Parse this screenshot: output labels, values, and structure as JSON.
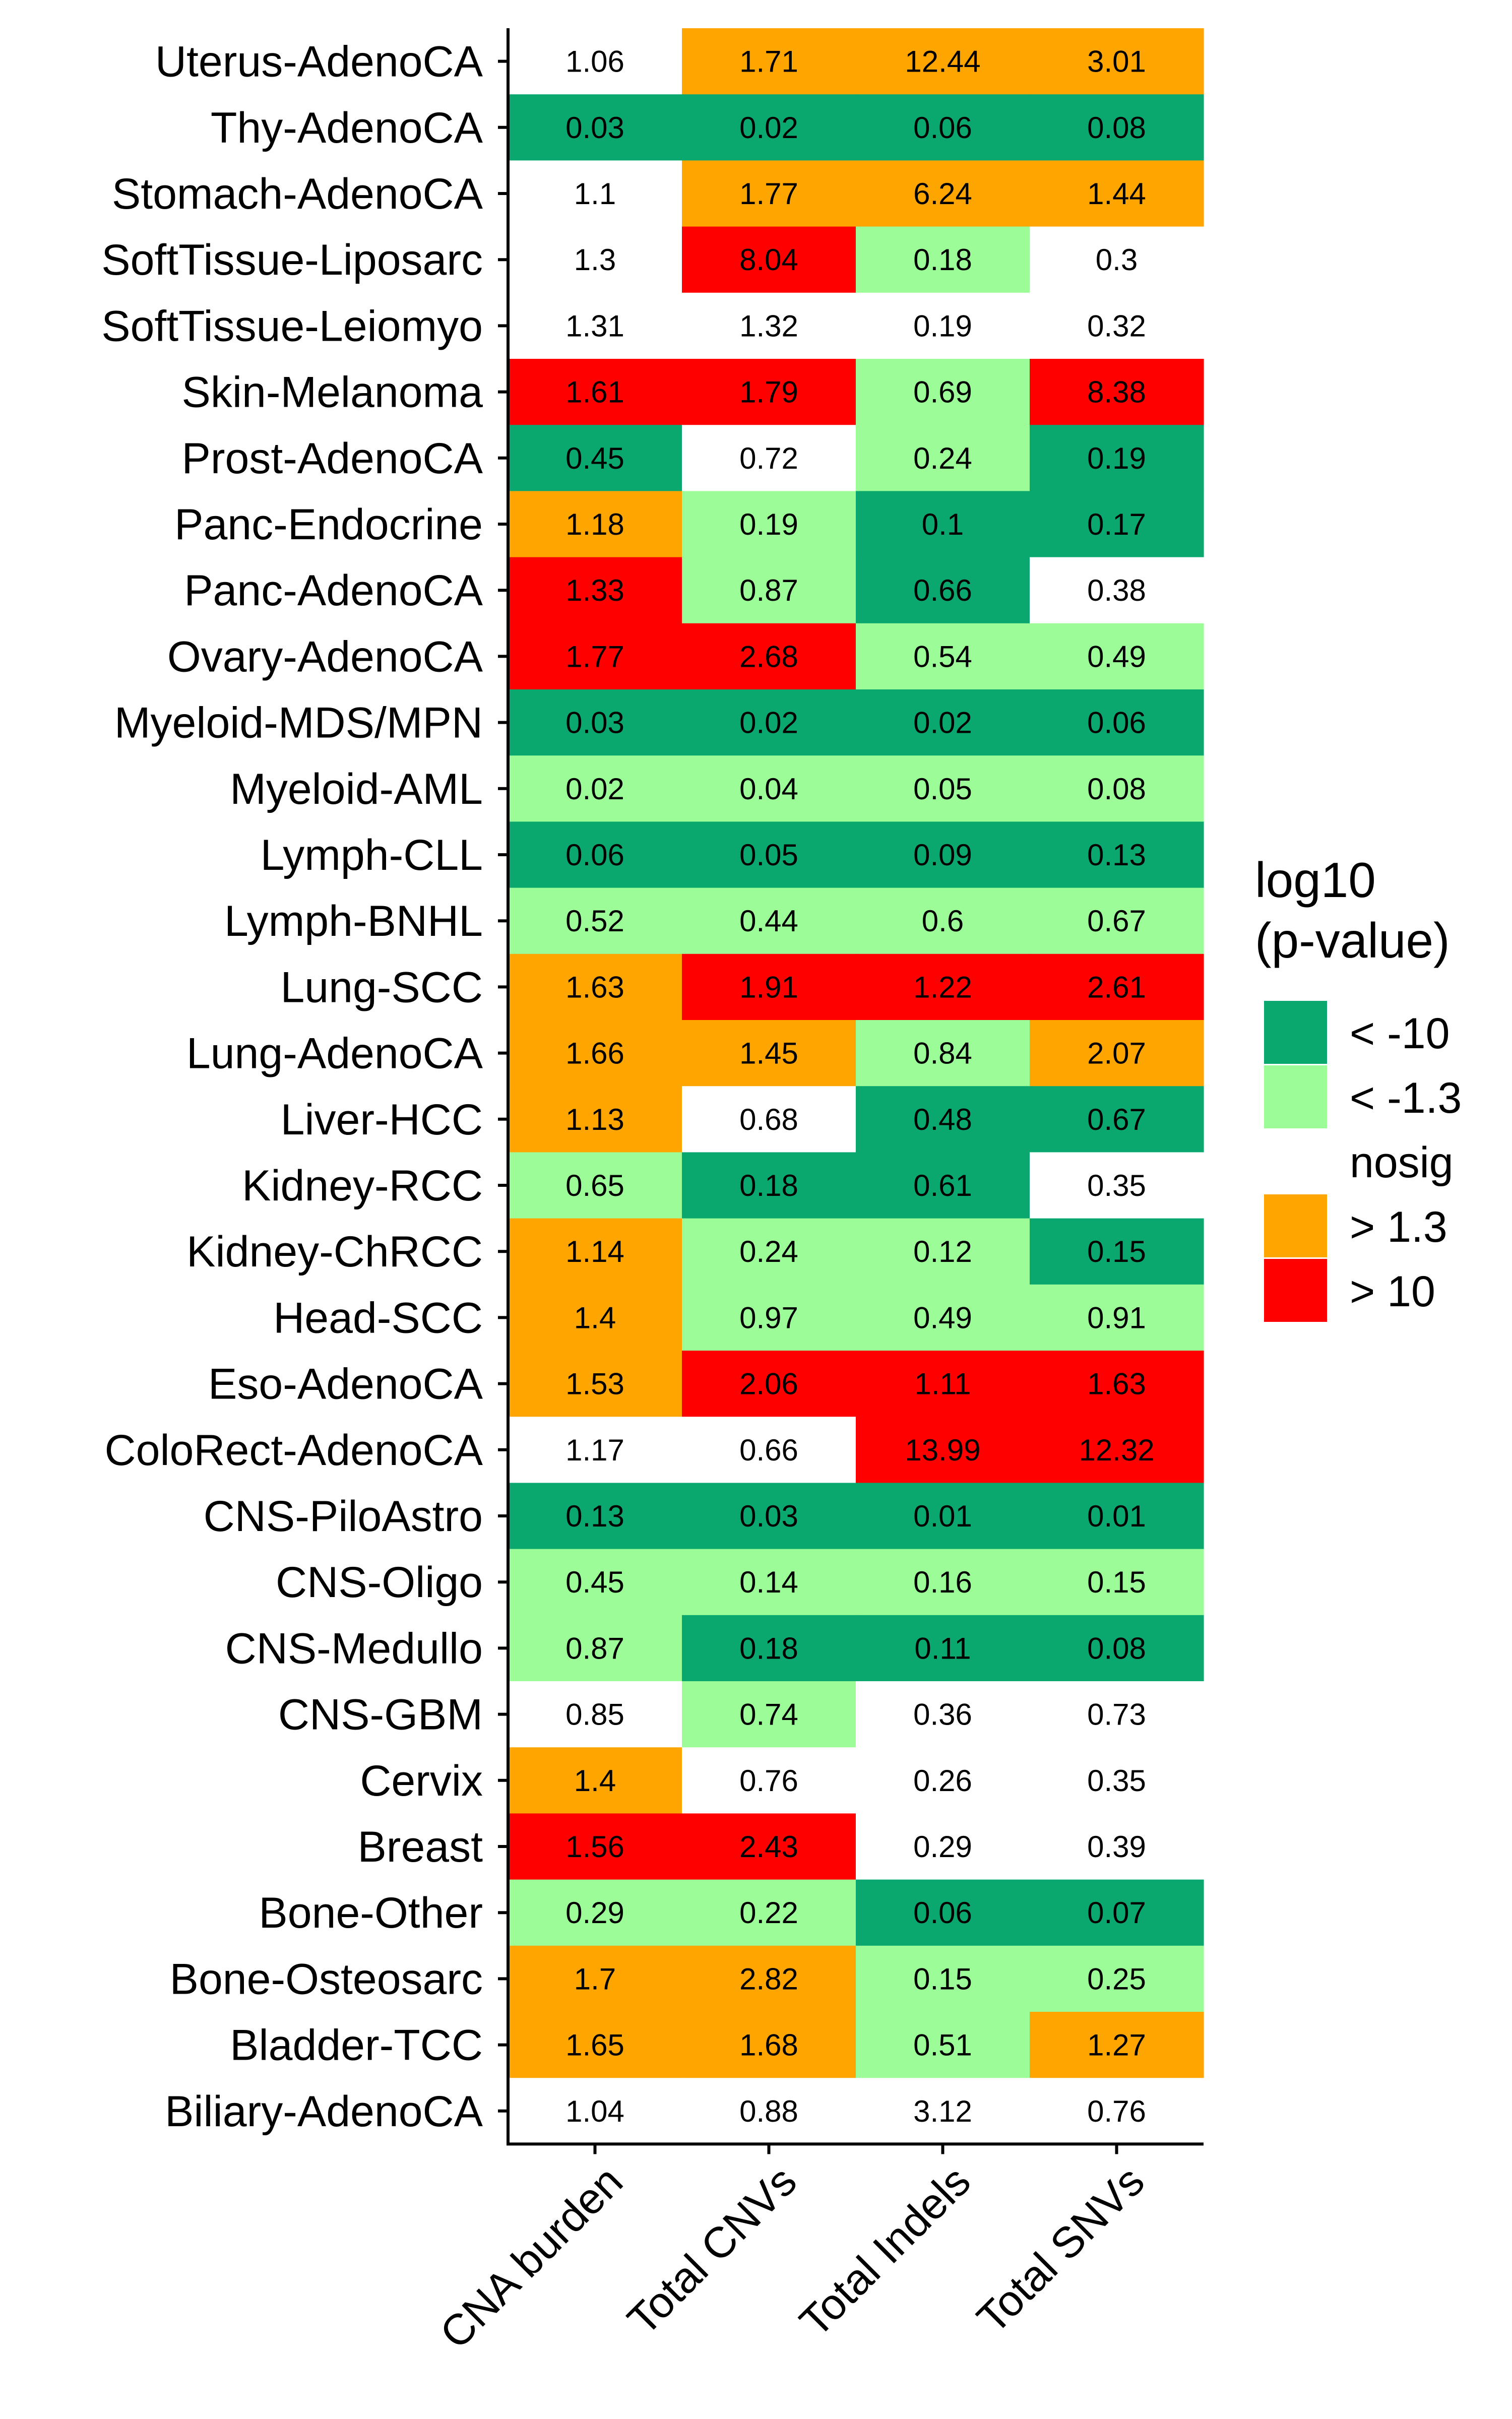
{
  "chart_data": {
    "type": "heatmap",
    "title": "",
    "xlabel": "",
    "ylabel": "",
    "columns": [
      "CNA burden",
      "Total CNVs",
      "Total Indels",
      "Total SNVs"
    ],
    "rows": [
      {
        "name": "Uterus-AdenoCA",
        "values": [
          "1.06",
          "1.71",
          "12.44",
          "3.01"
        ],
        "categories": [
          "nosig",
          "> 1.3",
          "> 1.3",
          "> 1.3"
        ]
      },
      {
        "name": "Thy-AdenoCA",
        "values": [
          "0.03",
          "0.02",
          "0.06",
          "0.08"
        ],
        "categories": [
          "< -10",
          "< -10",
          "< -10",
          "< -10"
        ]
      },
      {
        "name": "Stomach-AdenoCA",
        "values": [
          "1.1",
          "1.77",
          "6.24",
          "1.44"
        ],
        "categories": [
          "nosig",
          "> 1.3",
          "> 1.3",
          "> 1.3"
        ]
      },
      {
        "name": "SoftTissue-Liposarc",
        "values": [
          "1.3",
          "8.04",
          "0.18",
          "0.3"
        ],
        "categories": [
          "nosig",
          "> 10",
          "< -1.3",
          "nosig"
        ]
      },
      {
        "name": "SoftTissue-Leiomyo",
        "values": [
          "1.31",
          "1.32",
          "0.19",
          "0.32"
        ],
        "categories": [
          "nosig",
          "nosig",
          "nosig",
          "nosig"
        ]
      },
      {
        "name": "Skin-Melanoma",
        "values": [
          "1.61",
          "1.79",
          "0.69",
          "8.38"
        ],
        "categories": [
          "> 10",
          "> 10",
          "< -1.3",
          "> 10"
        ]
      },
      {
        "name": "Prost-AdenoCA",
        "values": [
          "0.45",
          "0.72",
          "0.24",
          "0.19"
        ],
        "categories": [
          "< -10",
          "nosig",
          "< -1.3",
          "< -10"
        ]
      },
      {
        "name": "Panc-Endocrine",
        "values": [
          "1.18",
          "0.19",
          "0.1",
          "0.17"
        ],
        "categories": [
          "> 1.3",
          "< -1.3",
          "< -10",
          "< -10"
        ]
      },
      {
        "name": "Panc-AdenoCA",
        "values": [
          "1.33",
          "0.87",
          "0.66",
          "0.38"
        ],
        "categories": [
          "> 10",
          "< -1.3",
          "< -10",
          "nosig"
        ]
      },
      {
        "name": "Ovary-AdenoCA",
        "values": [
          "1.77",
          "2.68",
          "0.54",
          "0.49"
        ],
        "categories": [
          "> 10",
          "> 10",
          "< -1.3",
          "< -1.3"
        ]
      },
      {
        "name": "Myeloid-MDS/MPN",
        "values": [
          "0.03",
          "0.02",
          "0.02",
          "0.06"
        ],
        "categories": [
          "< -10",
          "< -10",
          "< -10",
          "< -10"
        ]
      },
      {
        "name": "Myeloid-AML",
        "values": [
          "0.02",
          "0.04",
          "0.05",
          "0.08"
        ],
        "categories": [
          "< -1.3",
          "< -1.3",
          "< -1.3",
          "< -1.3"
        ]
      },
      {
        "name": "Lymph-CLL",
        "values": [
          "0.06",
          "0.05",
          "0.09",
          "0.13"
        ],
        "categories": [
          "< -10",
          "< -10",
          "< -10",
          "< -10"
        ]
      },
      {
        "name": "Lymph-BNHL",
        "values": [
          "0.52",
          "0.44",
          "0.6",
          "0.67"
        ],
        "categories": [
          "< -1.3",
          "< -1.3",
          "< -1.3",
          "< -1.3"
        ]
      },
      {
        "name": "Lung-SCC",
        "values": [
          "1.63",
          "1.91",
          "1.22",
          "2.61"
        ],
        "categories": [
          "> 1.3",
          "> 10",
          "> 10",
          "> 10"
        ]
      },
      {
        "name": "Lung-AdenoCA",
        "values": [
          "1.66",
          "1.45",
          "0.84",
          "2.07"
        ],
        "categories": [
          "> 1.3",
          "> 1.3",
          "< -1.3",
          "> 1.3"
        ]
      },
      {
        "name": "Liver-HCC",
        "values": [
          "1.13",
          "0.68",
          "0.48",
          "0.67"
        ],
        "categories": [
          "> 1.3",
          "nosig",
          "< -10",
          "< -10"
        ]
      },
      {
        "name": "Kidney-RCC",
        "values": [
          "0.65",
          "0.18",
          "0.61",
          "0.35"
        ],
        "categories": [
          "< -1.3",
          "< -10",
          "< -10",
          "nosig"
        ]
      },
      {
        "name": "Kidney-ChRCC",
        "values": [
          "1.14",
          "0.24",
          "0.12",
          "0.15"
        ],
        "categories": [
          "> 1.3",
          "< -1.3",
          "< -1.3",
          "< -10"
        ]
      },
      {
        "name": "Head-SCC",
        "values": [
          "1.4",
          "0.97",
          "0.49",
          "0.91"
        ],
        "categories": [
          "> 1.3",
          "< -1.3",
          "< -1.3",
          "< -1.3"
        ]
      },
      {
        "name": "Eso-AdenoCA",
        "values": [
          "1.53",
          "2.06",
          "1.11",
          "1.63"
        ],
        "categories": [
          "> 1.3",
          "> 10",
          "> 10",
          "> 10"
        ]
      },
      {
        "name": "ColoRect-AdenoCA",
        "values": [
          "1.17",
          "0.66",
          "13.99",
          "12.32"
        ],
        "categories": [
          "nosig",
          "nosig",
          "> 10",
          "> 10"
        ]
      },
      {
        "name": "CNS-PiloAstro",
        "values": [
          "0.13",
          "0.03",
          "0.01",
          "0.01"
        ],
        "categories": [
          "< -10",
          "< -10",
          "< -10",
          "< -10"
        ]
      },
      {
        "name": "CNS-Oligo",
        "values": [
          "0.45",
          "0.14",
          "0.16",
          "0.15"
        ],
        "categories": [
          "< -1.3",
          "< -1.3",
          "< -1.3",
          "< -1.3"
        ]
      },
      {
        "name": "CNS-Medullo",
        "values": [
          "0.87",
          "0.18",
          "0.11",
          "0.08"
        ],
        "categories": [
          "< -1.3",
          "< -10",
          "< -10",
          "< -10"
        ]
      },
      {
        "name": "CNS-GBM",
        "values": [
          "0.85",
          "0.74",
          "0.36",
          "0.73"
        ],
        "categories": [
          "nosig",
          "< -1.3",
          "nosig",
          "nosig"
        ]
      },
      {
        "name": "Cervix",
        "values": [
          "1.4",
          "0.76",
          "0.26",
          "0.35"
        ],
        "categories": [
          "> 1.3",
          "nosig",
          "nosig",
          "nosig"
        ]
      },
      {
        "name": "Breast",
        "values": [
          "1.56",
          "2.43",
          "0.29",
          "0.39"
        ],
        "categories": [
          "> 10",
          "> 10",
          "nosig",
          "nosig"
        ]
      },
      {
        "name": "Bone-Other",
        "values": [
          "0.29",
          "0.22",
          "0.06",
          "0.07"
        ],
        "categories": [
          "< -1.3",
          "< -1.3",
          "< -10",
          "< -10"
        ]
      },
      {
        "name": "Bone-Osteosarc",
        "values": [
          "1.7",
          "2.82",
          "0.15",
          "0.25"
        ],
        "categories": [
          "> 1.3",
          "> 1.3",
          "< -1.3",
          "< -1.3"
        ]
      },
      {
        "name": "Bladder-TCC",
        "values": [
          "1.65",
          "1.68",
          "0.51",
          "1.27"
        ],
        "categories": [
          "> 1.3",
          "> 1.3",
          "< -1.3",
          "> 1.3"
        ]
      },
      {
        "name": "Biliary-AdenoCA",
        "values": [
          "1.04",
          "0.88",
          "3.12",
          "0.76"
        ],
        "categories": [
          "nosig",
          "nosig",
          "nosig",
          "nosig"
        ]
      }
    ],
    "legend": {
      "title_line1": "log10",
      "title_line2": "(p-value)",
      "placement": "right",
      "entries": [
        {
          "label": "< -10",
          "color": "#0aa86e"
        },
        {
          "label": "< -1.3",
          "color": "#9cfc98"
        },
        {
          "label": "nosig",
          "color": "#ffffff"
        },
        {
          "label": "> 1.3",
          "color": "#ffa500"
        },
        {
          "label": "> 10",
          "color": "#ff0000"
        }
      ]
    }
  }
}
